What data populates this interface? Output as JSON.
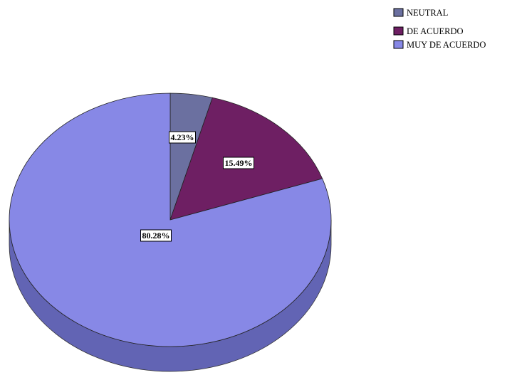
{
  "chart_data": {
    "type": "pie",
    "style": "3d",
    "title": "",
    "legend_position": "top-right",
    "categories": [
      "NEUTRAL",
      "DE ACUERDO",
      "MUY DE ACUERDO"
    ],
    "values": [
      4.23,
      15.49,
      80.28
    ],
    "labels": [
      "4.23%",
      "15.49%",
      "80.28%"
    ],
    "colors": [
      "#6b70a0",
      "#6e1f63",
      "#8788e6"
    ],
    "side_colors": [
      "#4f5378",
      "#4d1545",
      "#6264b4"
    ]
  }
}
